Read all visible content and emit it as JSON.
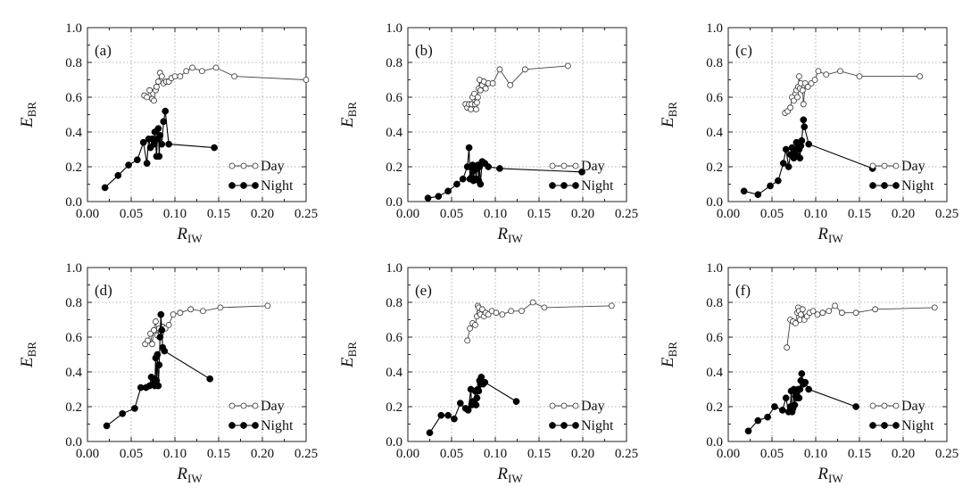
{
  "chart_data": [
    {
      "type": "line",
      "title": "(a)",
      "xlabel": "R",
      "xlabel_sub": "IW",
      "ylabel": "E",
      "ylabel_sub": "BR",
      "xlim": [
        0,
        0.25
      ],
      "ylim": [
        0,
        1.0
      ],
      "xticks": [
        "0.00",
        "0.05",
        "0.10",
        "0.15",
        "0.20",
        "0.25"
      ],
      "yticks": [
        "0.0",
        "0.2",
        "0.4",
        "0.6",
        "0.8",
        "1.0"
      ],
      "grid": true,
      "legend": "bottom-right",
      "series": [
        {
          "name": "Day",
          "marker": "open-circle",
          "x": [
            0.065,
            0.068,
            0.071,
            0.074,
            0.076,
            0.078,
            0.079,
            0.081,
            0.083,
            0.085,
            0.087,
            0.09,
            0.093,
            0.096,
            0.1,
            0.106,
            0.113,
            0.12,
            0.131,
            0.147,
            0.168,
            0.25
          ],
          "y": [
            0.61,
            0.6,
            0.64,
            0.59,
            0.58,
            0.64,
            0.66,
            0.69,
            0.74,
            0.72,
            0.68,
            0.69,
            0.69,
            0.71,
            0.72,
            0.72,
            0.75,
            0.77,
            0.75,
            0.77,
            0.72,
            0.7
          ]
        },
        {
          "name": "Night",
          "marker": "filled-circle",
          "x": [
            0.02,
            0.035,
            0.047,
            0.057,
            0.064,
            0.068,
            0.07,
            0.072,
            0.074,
            0.076,
            0.077,
            0.079,
            0.08,
            0.081,
            0.082,
            0.083,
            0.085,
            0.087,
            0.089,
            0.093,
            0.145
          ],
          "y": [
            0.08,
            0.15,
            0.21,
            0.24,
            0.34,
            0.22,
            0.36,
            0.31,
            0.36,
            0.33,
            0.4,
            0.26,
            0.36,
            0.42,
            0.26,
            0.38,
            0.33,
            0.46,
            0.52,
            0.33,
            0.31
          ]
        }
      ]
    },
    {
      "type": "line",
      "title": "(b)",
      "xlabel": "R",
      "xlabel_sub": "IW",
      "ylabel": "E",
      "ylabel_sub": "BR",
      "xlim": [
        0,
        0.25
      ],
      "ylim": [
        0,
        1.0
      ],
      "xticks": [
        "0.00",
        "0.05",
        "0.10",
        "0.15",
        "0.20",
        "0.25"
      ],
      "yticks": [
        "0.0",
        "0.2",
        "0.4",
        "0.6",
        "0.8",
        "1.0"
      ],
      "grid": true,
      "legend": "bottom-right",
      "series": [
        {
          "name": "Day",
          "marker": "open-circle",
          "x": [
            0.066,
            0.068,
            0.07,
            0.072,
            0.073,
            0.074,
            0.076,
            0.077,
            0.078,
            0.079,
            0.08,
            0.081,
            0.082,
            0.083,
            0.085,
            0.087,
            0.089,
            0.092,
            0.097,
            0.105,
            0.117,
            0.134,
            0.183
          ],
          "y": [
            0.56,
            0.54,
            0.56,
            0.53,
            0.56,
            0.6,
            0.62,
            0.56,
            0.53,
            0.57,
            0.6,
            0.65,
            0.7,
            0.64,
            0.67,
            0.69,
            0.65,
            0.68,
            0.68,
            0.76,
            0.67,
            0.76,
            0.78
          ]
        },
        {
          "name": "Night",
          "marker": "filled-circle",
          "x": [
            0.023,
            0.035,
            0.046,
            0.056,
            0.063,
            0.068,
            0.07,
            0.071,
            0.072,
            0.073,
            0.074,
            0.075,
            0.076,
            0.077,
            0.078,
            0.079,
            0.08,
            0.081,
            0.082,
            0.083,
            0.085,
            0.088,
            0.092,
            0.105,
            0.199
          ],
          "y": [
            0.02,
            0.03,
            0.06,
            0.1,
            0.13,
            0.2,
            0.31,
            0.13,
            0.2,
            0.14,
            0.21,
            0.12,
            0.18,
            0.2,
            0.13,
            0.19,
            0.21,
            0.12,
            0.2,
            0.1,
            0.23,
            0.22,
            0.2,
            0.19,
            0.17
          ]
        }
      ]
    },
    {
      "type": "line",
      "title": "(c)",
      "xlabel": "R",
      "xlabel_sub": "IW",
      "ylabel": "E",
      "ylabel_sub": "BR",
      "xlim": [
        0,
        0.25
      ],
      "ylim": [
        0,
        1.0
      ],
      "xticks": [
        "0.00",
        "0.05",
        "0.10",
        "0.15",
        "0.20",
        "0.25"
      ],
      "yticks": [
        "0.0",
        "0.2",
        "0.4",
        "0.6",
        "0.8",
        "1.0"
      ],
      "grid": true,
      "legend": "bottom-right",
      "series": [
        {
          "name": "Day",
          "marker": "open-circle",
          "x": [
            0.065,
            0.068,
            0.071,
            0.073,
            0.075,
            0.077,
            0.078,
            0.079,
            0.08,
            0.081,
            0.082,
            0.083,
            0.085,
            0.086,
            0.088,
            0.091,
            0.095,
            0.099,
            0.103,
            0.112,
            0.128,
            0.15,
            0.219
          ],
          "y": [
            0.51,
            0.52,
            0.54,
            0.6,
            0.58,
            0.62,
            0.64,
            0.6,
            0.66,
            0.72,
            0.65,
            0.68,
            0.64,
            0.56,
            0.68,
            0.66,
            0.68,
            0.7,
            0.75,
            0.73,
            0.75,
            0.72,
            0.72
          ]
        },
        {
          "name": "Night",
          "marker": "filled-circle",
          "x": [
            0.018,
            0.034,
            0.048,
            0.057,
            0.063,
            0.066,
            0.069,
            0.071,
            0.073,
            0.075,
            0.076,
            0.078,
            0.079,
            0.08,
            0.081,
            0.082,
            0.083,
            0.084,
            0.086,
            0.087,
            0.092,
            0.165
          ],
          "y": [
            0.06,
            0.04,
            0.09,
            0.12,
            0.22,
            0.3,
            0.2,
            0.27,
            0.31,
            0.25,
            0.28,
            0.34,
            0.26,
            0.31,
            0.3,
            0.25,
            0.32,
            0.35,
            0.47,
            0.43,
            0.33,
            0.19
          ]
        }
      ]
    },
    {
      "type": "line",
      "title": "(d)",
      "xlabel": "R",
      "xlabel_sub": "IW",
      "ylabel": "E",
      "ylabel_sub": "BR",
      "xlim": [
        0,
        0.25
      ],
      "ylim": [
        0,
        1.0
      ],
      "xticks": [
        "0.00",
        "0.05",
        "0.10",
        "0.15",
        "0.20",
        "0.25"
      ],
      "yticks": [
        "0.0",
        "0.2",
        "0.4",
        "0.6",
        "0.8",
        "1.0"
      ],
      "grid": true,
      "legend": "bottom-right",
      "series": [
        {
          "name": "Day",
          "marker": "open-circle",
          "x": [
            0.066,
            0.069,
            0.072,
            0.074,
            0.076,
            0.078,
            0.08,
            0.082,
            0.084,
            0.086,
            0.089,
            0.093,
            0.098,
            0.106,
            0.118,
            0.132,
            0.152,
            0.206
          ],
          "y": [
            0.56,
            0.58,
            0.62,
            0.56,
            0.64,
            0.69,
            0.61,
            0.65,
            0.62,
            0.66,
            0.65,
            0.67,
            0.73,
            0.74,
            0.76,
            0.75,
            0.77,
            0.78
          ]
        },
        {
          "name": "Night",
          "marker": "filled-circle",
          "x": [
            0.022,
            0.04,
            0.054,
            0.061,
            0.067,
            0.071,
            0.073,
            0.075,
            0.076,
            0.077,
            0.078,
            0.079,
            0.08,
            0.081,
            0.082,
            0.083,
            0.084,
            0.085,
            0.086,
            0.088,
            0.14
          ],
          "y": [
            0.09,
            0.16,
            0.19,
            0.31,
            0.31,
            0.32,
            0.37,
            0.33,
            0.36,
            0.32,
            0.48,
            0.35,
            0.5,
            0.32,
            0.44,
            0.6,
            0.73,
            0.64,
            0.54,
            0.52,
            0.36
          ]
        }
      ]
    },
    {
      "type": "line",
      "title": "(e)",
      "xlabel": "R",
      "xlabel_sub": "IW",
      "ylabel": "E",
      "ylabel_sub": "BR",
      "xlim": [
        0,
        0.25
      ],
      "ylim": [
        0,
        1.0
      ],
      "xticks": [
        "0.00",
        "0.05",
        "0.10",
        "0.15",
        "0.20",
        "0.25"
      ],
      "yticks": [
        "0.0",
        "0.2",
        "0.4",
        "0.6",
        "0.8",
        "1.0"
      ],
      "grid": true,
      "legend": "bottom-right",
      "series": [
        {
          "name": "Day",
          "marker": "open-circle",
          "x": [
            0.068,
            0.071,
            0.074,
            0.077,
            0.079,
            0.08,
            0.081,
            0.082,
            0.083,
            0.085,
            0.087,
            0.089,
            0.092,
            0.096,
            0.101,
            0.108,
            0.118,
            0.13,
            0.143,
            0.156,
            0.233
          ],
          "y": [
            0.58,
            0.65,
            0.68,
            0.67,
            0.72,
            0.78,
            0.77,
            0.74,
            0.73,
            0.76,
            0.72,
            0.74,
            0.73,
            0.75,
            0.74,
            0.73,
            0.75,
            0.75,
            0.8,
            0.77,
            0.78
          ]
        },
        {
          "name": "Night",
          "marker": "filled-circle",
          "x": [
            0.025,
            0.038,
            0.046,
            0.053,
            0.06,
            0.066,
            0.069,
            0.072,
            0.073,
            0.074,
            0.076,
            0.077,
            0.078,
            0.079,
            0.08,
            0.081,
            0.082,
            0.083,
            0.084,
            0.086,
            0.088,
            0.124
          ],
          "y": [
            0.05,
            0.15,
            0.15,
            0.13,
            0.22,
            0.19,
            0.18,
            0.3,
            0.21,
            0.23,
            0.22,
            0.29,
            0.21,
            0.25,
            0.3,
            0.29,
            0.35,
            0.33,
            0.37,
            0.33,
            0.34,
            0.23
          ]
        }
      ]
    },
    {
      "type": "line",
      "title": "(f)",
      "xlabel": "R",
      "xlabel_sub": "IW",
      "ylabel": "E",
      "ylabel_sub": "BR",
      "xlim": [
        0,
        0.25
      ],
      "ylim": [
        0,
        1.0
      ],
      "xticks": [
        "0.00",
        "0.05",
        "0.10",
        "0.15",
        "0.20",
        "0.25"
      ],
      "yticks": [
        "0.0",
        "0.2",
        "0.4",
        "0.6",
        "0.8",
        "1.0"
      ],
      "grid": true,
      "legend": "bottom-right",
      "series": [
        {
          "name": "Day",
          "marker": "open-circle",
          "x": [
            0.067,
            0.071,
            0.074,
            0.077,
            0.079,
            0.08,
            0.081,
            0.082,
            0.083,
            0.085,
            0.087,
            0.09,
            0.093,
            0.097,
            0.102,
            0.108,
            0.115,
            0.122,
            0.13,
            0.146,
            0.168,
            0.236
          ],
          "y": [
            0.54,
            0.7,
            0.69,
            0.68,
            0.74,
            0.77,
            0.75,
            0.7,
            0.73,
            0.76,
            0.7,
            0.72,
            0.74,
            0.75,
            0.73,
            0.74,
            0.75,
            0.78,
            0.74,
            0.74,
            0.76,
            0.77
          ]
        },
        {
          "name": "Night",
          "marker": "filled-circle",
          "x": [
            0.023,
            0.034,
            0.045,
            0.053,
            0.062,
            0.066,
            0.069,
            0.071,
            0.072,
            0.073,
            0.074,
            0.075,
            0.076,
            0.077,
            0.078,
            0.079,
            0.08,
            0.081,
            0.082,
            0.083,
            0.084,
            0.086,
            0.088,
            0.092,
            0.146
          ],
          "y": [
            0.06,
            0.12,
            0.14,
            0.2,
            0.18,
            0.25,
            0.17,
            0.2,
            0.29,
            0.17,
            0.19,
            0.3,
            0.21,
            0.26,
            0.28,
            0.25,
            0.3,
            0.25,
            0.3,
            0.35,
            0.39,
            0.33,
            0.34,
            0.3,
            0.2
          ]
        }
      ]
    }
  ],
  "colors": {
    "axis": "#222222",
    "grid": "#9a9a9a",
    "night_marker": "#000000",
    "day_marker": "#ffffff"
  }
}
